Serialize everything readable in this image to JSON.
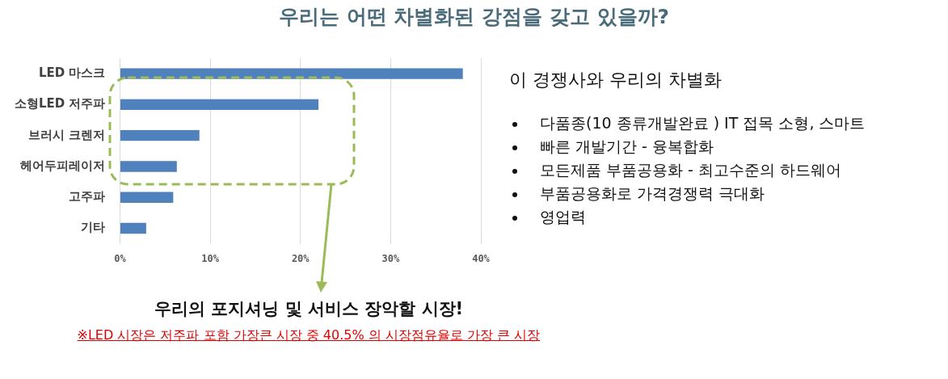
{
  "chart_data": {
    "type": "bar",
    "orientation": "horizontal",
    "title": "우리는 어떤 차별화된 강점을 갖고 있을까?",
    "categories": [
      "LED 마스크",
      "소형LED 저주파",
      "브러시 크렌저",
      "헤어두피레이저",
      "고주파",
      "기타"
    ],
    "values": [
      38,
      22,
      8.8,
      6.3,
      5.9,
      2.9
    ],
    "color": "#4f81bd",
    "xlim": [
      0,
      40
    ],
    "xticks": [
      {
        "value": 0,
        "label": "0%"
      },
      {
        "value": 10,
        "label": "10%"
      },
      {
        "value": 20,
        "label": "20%"
      },
      {
        "value": 30,
        "label": "30%"
      },
      {
        "value": 40,
        "label": "40%"
      }
    ],
    "grid": "x",
    "legend": false,
    "annotations": [
      "이 경쟁사와 우리의 차별화",
      "다품종(10 종류개발완료 ) IT 접목 소형, 스마트",
      "빠른 개발기간 - 융복합화",
      "모든제품 부품공용화 - 최고수준의 하드웨어",
      "부품공용화로 가격경쟁력 극대화",
      "영업력",
      "우리의 포지셔닝 및 서비스 장악할 시장!",
      "※LED 시장은 저주파 포함 가장큰 시장 중 40.5% 의 시장점유율로 가장 큰 시장"
    ]
  }
}
